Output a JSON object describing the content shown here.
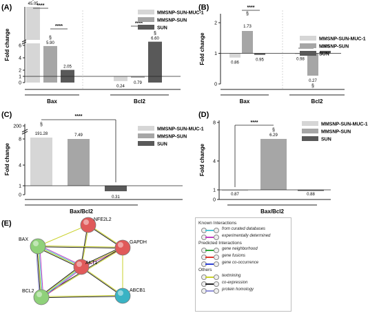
{
  "panel_labels": {
    "a": "(A)",
    "b": "(B)",
    "c": "(C)",
    "d": "(D)",
    "e": "(E)"
  },
  "significance_mark": "****",
  "section_mark": "§",
  "colors": {
    "muc1": "#d6d6d6",
    "mmsnp": "#a6a6a6",
    "sun": "#595959",
    "node_red": "#e05a5a",
    "node_green": "#8fd17a",
    "node_cyan": "#3ab3c4"
  },
  "chart_data": [
    {
      "id": "A",
      "type": "bar",
      "ylabel": "Fold change",
      "groups": [
        "Bax",
        "Bcl2"
      ],
      "series": [
        {
          "name": "MMSNP-SUN-MUC-1",
          "values": [
            45.05,
            0.24
          ]
        },
        {
          "name": "MMSNP-SUN",
          "values": [
            5.9,
            0.79
          ]
        },
        {
          "name": "SUN",
          "values": [
            2.05,
            6.6
          ]
        }
      ],
      "value_labels": [
        [
          "45.05",
          "5.90",
          "2.05"
        ],
        [
          "0.24",
          "0.79",
          "6.60"
        ]
      ],
      "y_tick_labels": [
        "0",
        "1",
        "2",
        "4",
        "6"
      ],
      "axis_break": true,
      "legend_position": "top-right"
    },
    {
      "id": "B",
      "type": "bar",
      "ylabel": "Fold change",
      "groups": [
        "Bax",
        "Bcl2"
      ],
      "series": [
        {
          "name": "MMSNP-SUN-MUC-1",
          "values": [
            0.86,
            0.98
          ]
        },
        {
          "name": "MMSNP-SUN",
          "values": [
            1.73,
            0.27
          ]
        },
        {
          "name": "SUN",
          "values": [
            0.95,
            1.08
          ]
        }
      ],
      "value_labels": [
        [
          "0.86",
          "1.73",
          "0.95"
        ],
        [
          "0.98",
          "0.27",
          "1.08"
        ]
      ],
      "y_tick_labels": [
        "0",
        "1",
        "2"
      ],
      "ylim": [
        0,
        2.2
      ],
      "legend_position": "top-right"
    },
    {
      "id": "C",
      "type": "bar",
      "ylabel": "Fold change",
      "categories": [
        "Bax/Bcl2"
      ],
      "series": [
        {
          "name": "MMSNP-SUN-MUC-1",
          "values": [
            191.28
          ]
        },
        {
          "name": "MMSNP-SUN",
          "values": [
            7.49
          ]
        },
        {
          "name": "SUN",
          "values": [
            0.31
          ]
        }
      ],
      "value_labels": [
        "191.28",
        "7.49",
        "0.31"
      ],
      "y_tick_labels": [
        "0",
        "1",
        "4",
        "8",
        "200"
      ],
      "axis_break": true,
      "legend_position": "top-right"
    },
    {
      "id": "D",
      "type": "bar",
      "ylabel": "Fold change",
      "categories": [
        "Bax/Bcl2"
      ],
      "series": [
        {
          "name": "MMSNP-SUN-MUC-1",
          "values": [
            0.87
          ]
        },
        {
          "name": "MMSNP-SUN",
          "values": [
            6.29
          ]
        },
        {
          "name": "SUN",
          "values": [
            0.88
          ]
        }
      ],
      "value_labels": [
        "0.87",
        "6.29",
        "0.88"
      ],
      "y_tick_labels": [
        "0",
        "1",
        "4",
        "8"
      ],
      "ylim": [
        0,
        8
      ],
      "legend_position": "top-right"
    }
  ],
  "network": {
    "nodes": [
      "NFE2L2",
      "BAX",
      "GAPDH",
      "AKT1",
      "BCL2",
      "ABCB1"
    ]
  },
  "string_legend": {
    "known_title": "Known Interactions",
    "known": [
      "from curated databases",
      "experimentally determined"
    ],
    "predicted_title": "Predicted Interactions",
    "predicted": [
      "gene neighborhood",
      "gene fusions",
      "gene co-occurrence"
    ],
    "others_title": "Others",
    "others": [
      "textmining",
      "co-expression",
      "protein homology"
    ]
  }
}
